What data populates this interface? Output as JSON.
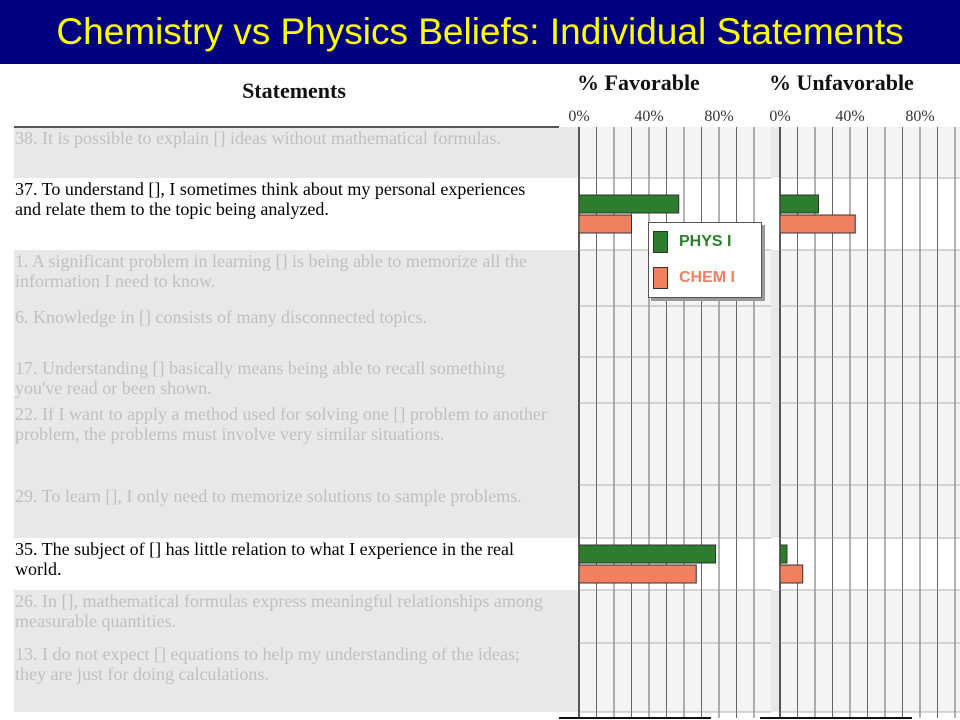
{
  "title": "Chemistry vs Physics Beliefs: Individual Statements",
  "statements_heading": "Statements",
  "chart_data": {
    "type": "bar",
    "orientation": "horizontal",
    "panels": [
      {
        "title": "% Favorable",
        "ticks": [
          "0%",
          "40%",
          "80%"
        ],
        "xlim": [
          0,
          100
        ]
      },
      {
        "title": "% Unfavorable",
        "ticks": [
          "0%",
          "40%",
          "80%"
        ],
        "xlim": [
          0,
          100
        ]
      }
    ],
    "statements": [
      {
        "text": "38. It is possible to explain [] ideas without mathematical formulas.",
        "highlighted": false
      },
      {
        "text": "37. To understand [], I sometimes think about my personal experiences and relate them to the topic being analyzed.",
        "highlighted": true
      },
      {
        "text": "1. A significant problem in learning [] is being able to memorize all the information I need to know.",
        "highlighted": false
      },
      {
        "text": "6. Knowledge in [] consists of many disconnected topics.",
        "highlighted": false
      },
      {
        "text": "17. Understanding [] basically means being able to recall something you've read or been shown.",
        "highlighted": false
      },
      {
        "text": "22. If I want to apply a method used for solving one [] problem to another problem, the problems must involve very similar situations.",
        "highlighted": false
      },
      {
        "text": "29. To learn [], I only need to memorize solutions to sample problems.",
        "highlighted": false
      },
      {
        "text": "35. The subject of [] has little relation to what I experience in the real world.",
        "highlighted": true
      },
      {
        "text": "26. In [], mathematical formulas express meaningful relationships among measurable quantities.",
        "highlighted": false
      },
      {
        "text": "13. I do not expect [] equations to help my understanding of the ideas; they are just for doing calculations.",
        "highlighted": false
      }
    ],
    "series": [
      {
        "name": "PHYS I",
        "color": "#2e7d2e",
        "favorable": [
          null,
          57,
          null,
          null,
          null,
          null,
          null,
          78,
          null,
          null
        ],
        "unfavorable": [
          null,
          22,
          null,
          null,
          null,
          null,
          null,
          4,
          null,
          null
        ]
      },
      {
        "name": "CHEM I",
        "color": "#f08060",
        "favorable": [
          null,
          30,
          null,
          null,
          null,
          null,
          null,
          67,
          null,
          null
        ],
        "unfavorable": [
          null,
          43,
          null,
          null,
          null,
          null,
          null,
          13,
          null,
          null
        ]
      }
    ],
    "legend_position": "top-left of favorable panel",
    "grid": true
  }
}
